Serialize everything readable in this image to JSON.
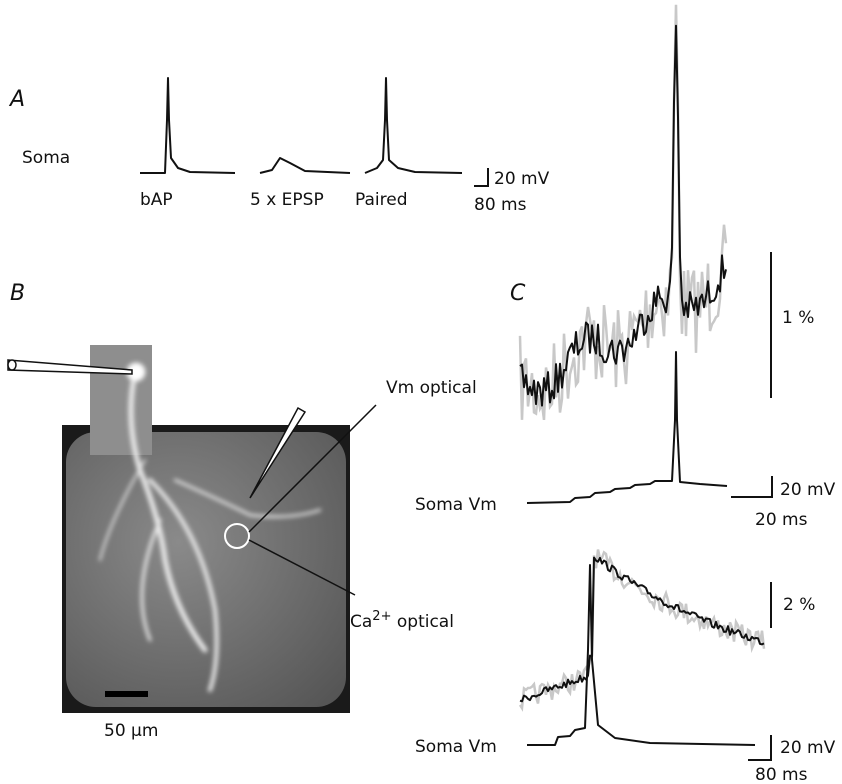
{
  "panels": {
    "a": {
      "label": "A",
      "row_label": "Soma",
      "conditions": [
        "bAP",
        "5 x EPSP",
        "Paired"
      ],
      "scale_v": "20 mV",
      "scale_t": "80 ms"
    },
    "b": {
      "label": "B",
      "scale": "50 µm"
    },
    "c": {
      "label": "C",
      "vm_optical": "Vm optical",
      "vm_scale": "1 %",
      "soma_1": "Soma Vm",
      "soma_1_scale_v": "20 mV",
      "soma_1_scale_t": "20 ms",
      "ca_scale": "2 %",
      "ca_optical": {
        "ion": "Ca",
        "charge": "2+",
        "rest": " optical"
      },
      "soma_2": "Soma Vm",
      "soma_2_scale_v": "20 mV",
      "soma_2_scale_t": "80 ms"
    }
  }
}
